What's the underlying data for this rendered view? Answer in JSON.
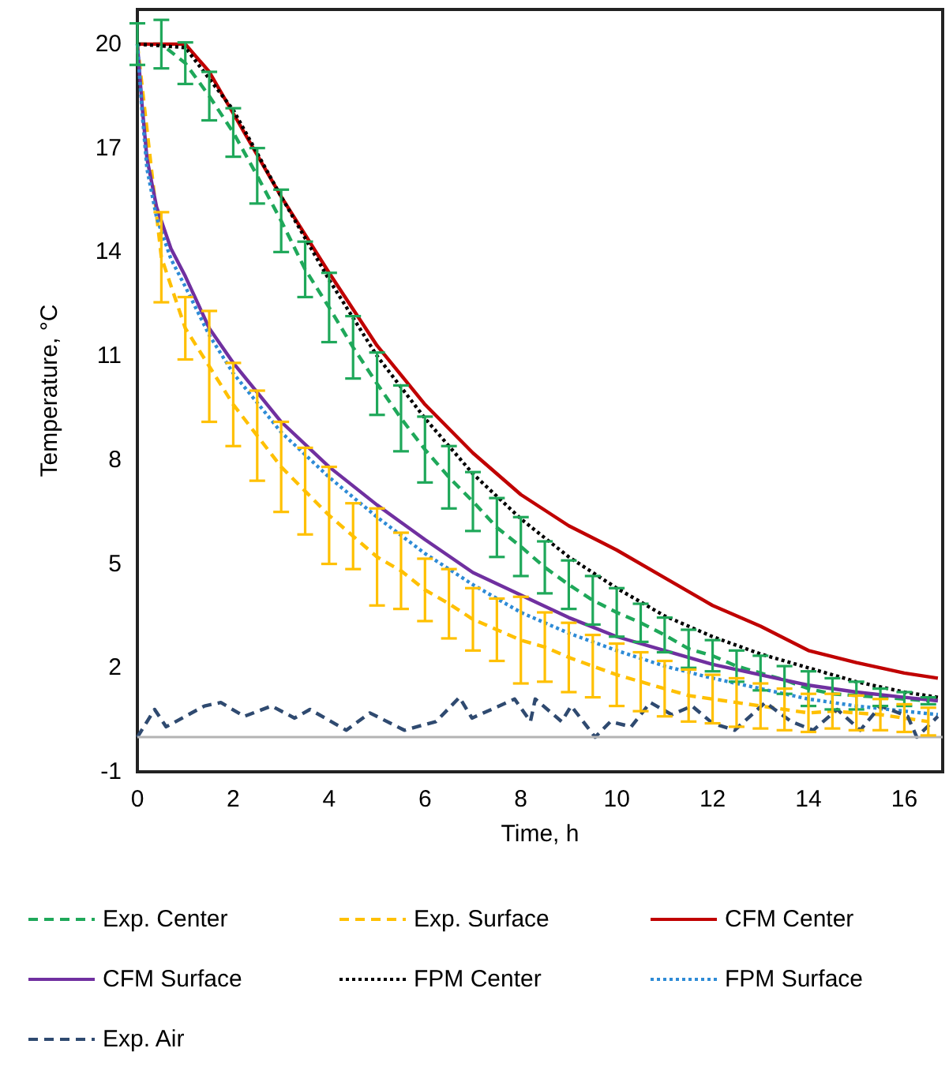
{
  "chart_data": {
    "type": "line",
    "xlabel": "Time, h",
    "ylabel": "Temperature, °C",
    "xlim": [
      0,
      16.8
    ],
    "xticks": [
      0,
      2,
      4,
      6,
      8,
      10,
      12,
      14,
      16
    ],
    "ylim": [
      -1,
      21
    ],
    "yticks": [
      -1,
      2,
      5,
      8,
      11,
      14,
      17,
      20
    ],
    "grid": false,
    "legend": "bottom",
    "marker": "none",
    "ref_lines": [
      {
        "axis": "y",
        "value": 0,
        "color": "#b4b4b4",
        "line_style": "solid"
      }
    ],
    "series": [
      {
        "name": "Exp. Center",
        "color": "#1fa85a",
        "line_style": "dashed",
        "x": [
          0,
          0.5,
          1,
          1.5,
          2,
          2.5,
          3,
          3.5,
          4,
          4.5,
          5,
          5.5,
          6,
          6.5,
          7,
          7.5,
          8,
          8.5,
          9,
          9.5,
          10,
          10.5,
          11,
          11.5,
          12,
          12.5,
          13,
          13.5,
          14,
          14.5,
          15,
          15.5,
          16,
          16.5
        ],
        "values": [
          20,
          20,
          19.45,
          18.5,
          17.45,
          16.2,
          14.9,
          13.5,
          12.4,
          11.25,
          10.2,
          9.2,
          8.3,
          7.5,
          6.8,
          6.05,
          5.5,
          4.9,
          4.4,
          3.95,
          3.6,
          3.3,
          2.95,
          2.55,
          2.35,
          2.05,
          1.85,
          1.65,
          1.4,
          1.25,
          1.2,
          1.15,
          1.1,
          1.05
        ],
        "errors": [
          0.6,
          0.7,
          0.6,
          0.7,
          0.7,
          0.8,
          0.9,
          0.8,
          1,
          0.9,
          0.9,
          0.95,
          0.95,
          0.9,
          0.85,
          0.85,
          0.85,
          0.75,
          0.7,
          0.7,
          0.7,
          0.55,
          0.5,
          0.55,
          0.45,
          0.45,
          0.5,
          0.4,
          0.5,
          0.45,
          0.4,
          0.25,
          0.2,
          0.1
        ]
      },
      {
        "name": "Exp. Surface",
        "color": "#ffc000",
        "line_style": "dashed",
        "x": [
          0,
          0.5,
          1,
          1.5,
          2,
          2.5,
          3,
          3.5,
          4,
          4.5,
          5,
          5.5,
          6,
          6.5,
          7,
          7.5,
          8,
          8.5,
          9,
          9.5,
          10,
          10.5,
          11,
          11.5,
          12,
          12.5,
          13,
          13.5,
          14,
          14.5,
          15,
          15.5,
          16,
          16.5
        ],
        "values": [
          20,
          13.85,
          11.8,
          10.7,
          9.6,
          8.7,
          7.8,
          7.1,
          6.4,
          5.8,
          5.2,
          4.8,
          4.25,
          3.85,
          3.4,
          3.1,
          2.8,
          2.6,
          2.3,
          2.05,
          1.8,
          1.6,
          1.4,
          1.2,
          1.1,
          1,
          0.9,
          0.8,
          0.7,
          0.75,
          0.7,
          0.65,
          0.55,
          0.45
        ],
        "errors": [
          null,
          1.3,
          0.9,
          1.6,
          1.2,
          1.3,
          1.3,
          1.25,
          1.4,
          0.95,
          1.4,
          1.1,
          0.9,
          1,
          0.9,
          0.9,
          1.25,
          1,
          1,
          0.9,
          0.9,
          0.85,
          0.8,
          0.75,
          0.7,
          0.7,
          0.65,
          0.6,
          0.55,
          0.5,
          0.5,
          0.45,
          0.4,
          0.4
        ]
      },
      {
        "name": "CFM Center",
        "color": "#c00000",
        "line_style": "solid",
        "x": [
          0,
          1,
          1.5,
          2,
          3,
          4,
          5,
          6,
          7,
          8,
          9,
          10,
          11,
          12,
          13,
          14,
          15,
          16,
          16.7
        ],
        "values": [
          20,
          20,
          19.2,
          18,
          15.6,
          13.4,
          11.3,
          9.6,
          8.2,
          7,
          6.1,
          5.4,
          4.6,
          3.8,
          3.2,
          2.5,
          2.15,
          1.85,
          1.7
        ]
      },
      {
        "name": "CFM Surface",
        "color": "#7030a0",
        "line_style": "solid",
        "x": [
          0,
          0.1,
          0.2,
          0.4,
          0.7,
          1,
          1.5,
          2,
          3,
          4,
          5,
          6,
          7,
          8,
          9,
          10,
          11,
          12,
          13,
          14,
          15,
          16,
          16.7
        ],
        "values": [
          20,
          18.2,
          16.7,
          15.3,
          14.1,
          13.3,
          11.8,
          10.8,
          9.1,
          7.8,
          6.7,
          5.7,
          4.75,
          4.1,
          3.45,
          2.9,
          2.5,
          2.1,
          1.8,
          1.5,
          1.3,
          1.15,
          1.05
        ]
      },
      {
        "name": "FPM Center",
        "color": "#000000",
        "line_style": "dotted",
        "x": [
          0,
          1,
          2,
          3,
          4,
          5,
          6,
          7,
          8,
          9,
          10,
          11,
          12,
          13,
          14,
          15,
          16,
          16.7
        ],
        "values": [
          20,
          19.9,
          18.1,
          15.6,
          13.2,
          11,
          9.2,
          7.6,
          6.3,
          5.2,
          4.3,
          3.5,
          2.9,
          2.4,
          2,
          1.6,
          1.3,
          1.15
        ]
      },
      {
        "name": "FPM Surface",
        "color": "#2e8bd6",
        "line_style": "dotted",
        "x": [
          0,
          0.1,
          0.2,
          0.4,
          0.7,
          1,
          1.5,
          2,
          3,
          4,
          5,
          6,
          7,
          8,
          9,
          10,
          11,
          12,
          13,
          14,
          15,
          16,
          16.7
        ],
        "values": [
          20,
          18,
          16.4,
          15,
          13.8,
          13,
          11.6,
          10.5,
          8.8,
          7.5,
          6.35,
          5.3,
          4.4,
          3.6,
          3,
          2.5,
          2.05,
          1.7,
          1.4,
          1.1,
          0.9,
          0.75,
          0.65
        ]
      },
      {
        "name": "Exp. Air",
        "color": "#2f4a70",
        "line_style": "dashed",
        "x": [
          0,
          0.36,
          0.6,
          1.4,
          1.74,
          2.23,
          2.8,
          3.28,
          3.6,
          4.36,
          4.85,
          5.57,
          6.23,
          6.72,
          6.98,
          7.87,
          8.2,
          8.3,
          8.85,
          9.05,
          9.55,
          9.87,
          10.3,
          10.7,
          11.15,
          11.57,
          12,
          12.46,
          13.1,
          13.64,
          14.1,
          14.6,
          15.08,
          15.5,
          16.07,
          16.26,
          16.7
        ],
        "values": [
          0,
          0.8,
          0.3,
          0.9,
          1,
          0.6,
          0.9,
          0.55,
          0.8,
          0.2,
          0.7,
          0.2,
          0.45,
          1.15,
          0.55,
          1.1,
          0.45,
          1.1,
          0.45,
          0.9,
          0,
          0.45,
          0.3,
          1,
          0.65,
          0.9,
          0.4,
          0.2,
          1,
          0.45,
          0.2,
          0.8,
          0.2,
          0.9,
          0.6,
          0,
          0.6
        ]
      }
    ]
  }
}
